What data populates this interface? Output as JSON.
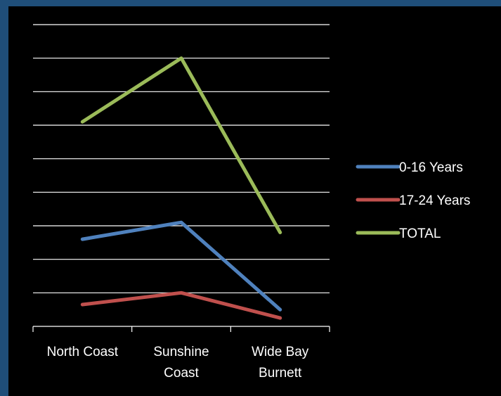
{
  "colors": {
    "outer_frame": "#1f4e79",
    "plot_background": "#000000",
    "gridline": "#ffffff",
    "text": "#ffffff"
  },
  "chart_data": {
    "type": "line",
    "title": "",
    "xlabel": "",
    "ylabel": "",
    "categories": [
      [
        "North Coast"
      ],
      [
        "Sunshine",
        "Coast"
      ],
      [
        "Wide Bay",
        "Burnett"
      ]
    ],
    "ylim": [
      0,
      9
    ],
    "grid": true,
    "y_tick_labels_shown": false,
    "legend_position": "right",
    "series": [
      {
        "name": "0-16 Years",
        "color": "#4f81bd",
        "values": [
          2.6,
          3.1,
          0.5
        ]
      },
      {
        "name": "17-24 Years",
        "color": "#c0504d",
        "values": [
          0.65,
          1.0,
          0.25
        ]
      },
      {
        "name": "TOTAL",
        "color": "#9bbb59",
        "values": [
          6.1,
          8.0,
          2.8
        ]
      }
    ]
  }
}
